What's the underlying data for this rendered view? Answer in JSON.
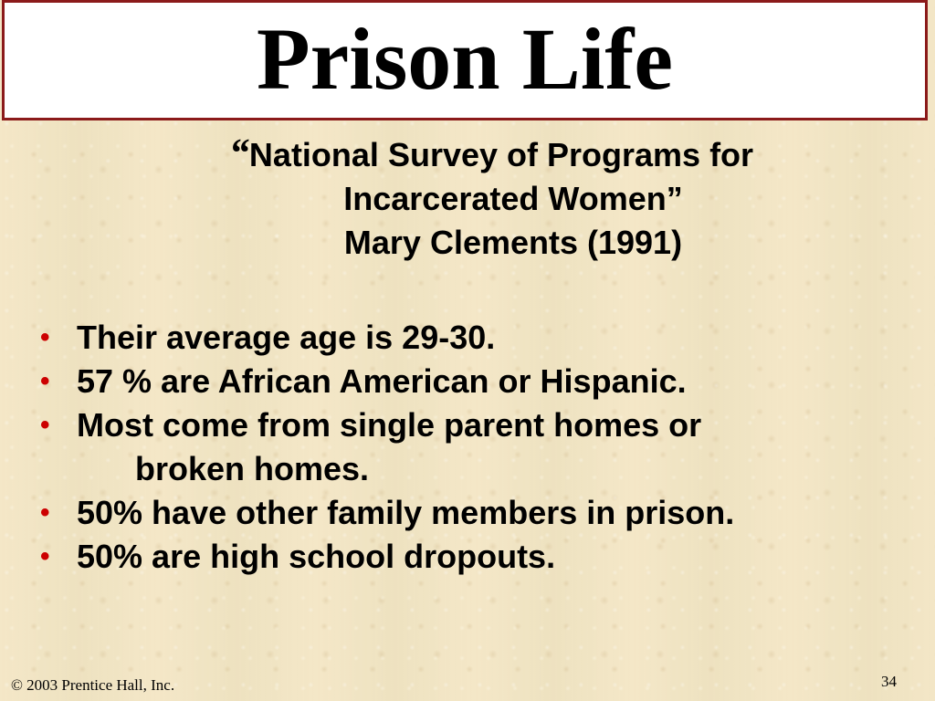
{
  "slide": {
    "title": "Prison Life",
    "subtitle": {
      "open_quote": "“",
      "line1": "National Survey of Programs for",
      "line2": "Incarcerated Women”",
      "line3": "Mary Clements (1991)"
    },
    "bullet_glyph": "•",
    "bullets": [
      {
        "text": "Their average age is 29-30."
      },
      {
        "text": "57 % are African American or Hispanic."
      },
      {
        "text": "Most come from single parent homes or",
        "continuation": "broken homes."
      },
      {
        "text": "50% have other family members in prison."
      },
      {
        "text": "50% are high school dropouts."
      }
    ],
    "footer": {
      "copyright": "© 2003 Prentice Hall, Inc.",
      "page_number": "34"
    },
    "colors": {
      "title_border": "#8b1a1a",
      "bullet": "#cc0000",
      "background": "#f3e6c4"
    }
  }
}
